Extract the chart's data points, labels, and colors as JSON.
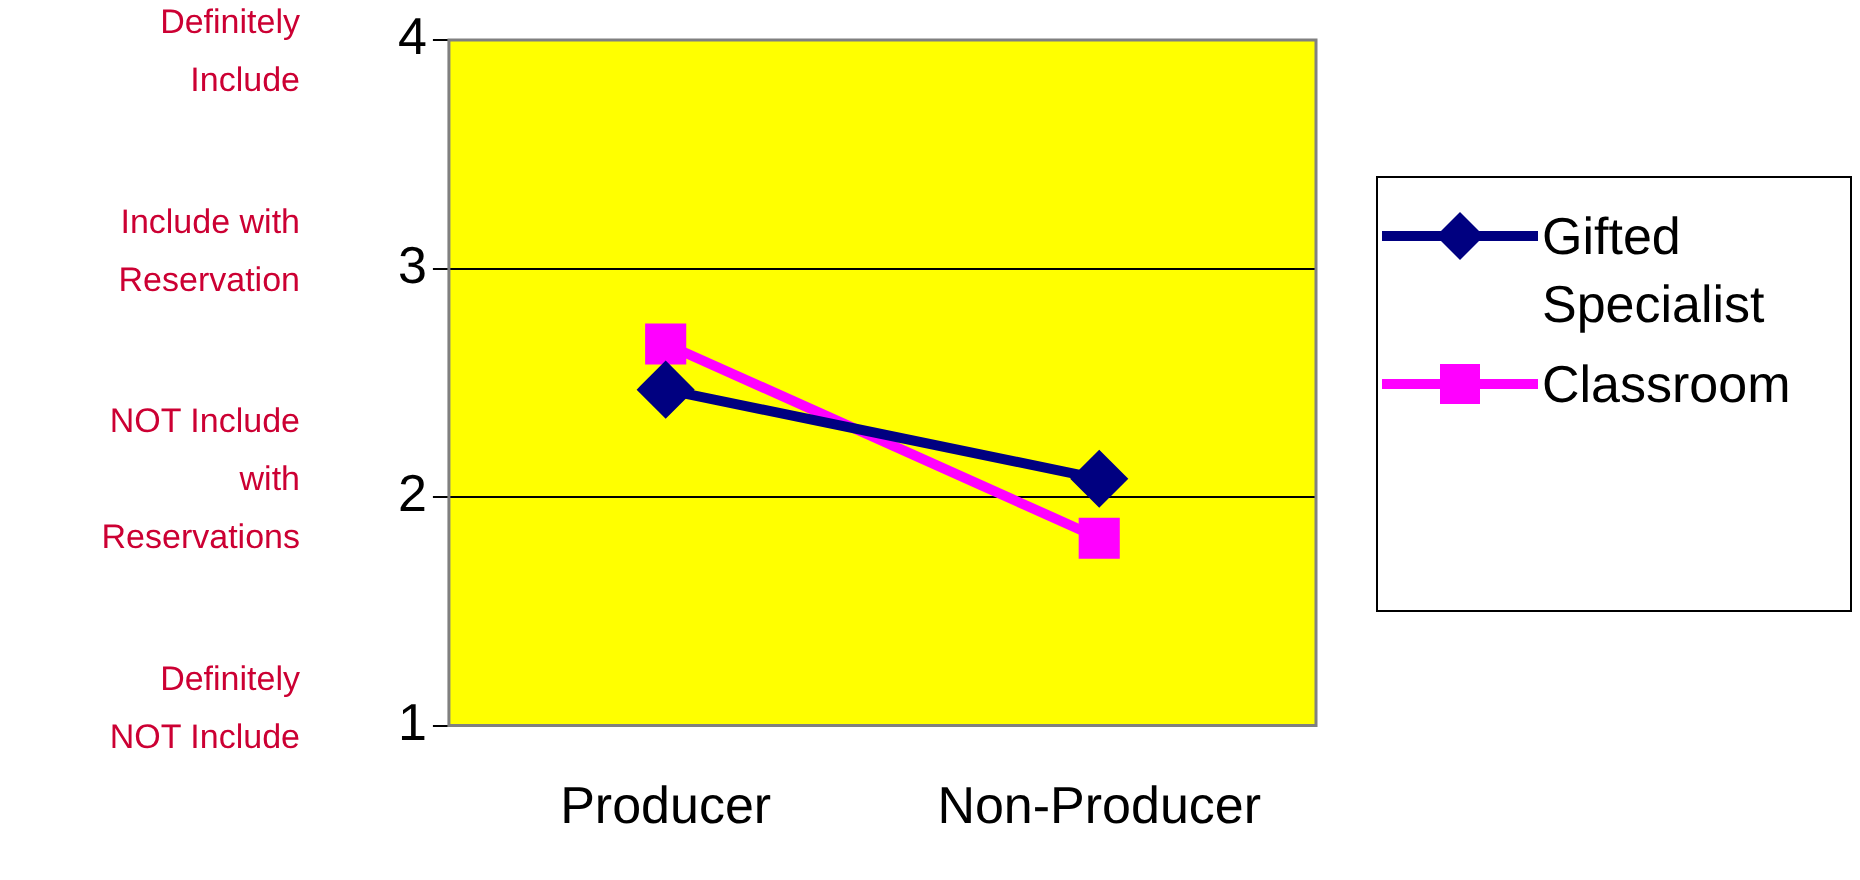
{
  "chart_data": {
    "type": "line",
    "categories": [
      "Producer",
      "Non-Producer"
    ],
    "series": [
      {
        "name": "Gifted Specialist",
        "color": "#000080",
        "values": [
          2.47,
          2.08
        ],
        "marker": "diamond"
      },
      {
        "name": "Classroom",
        "color": "#ff00ff",
        "values": [
          2.67,
          1.82
        ],
        "marker": "square"
      }
    ],
    "ylim": [
      1,
      4
    ],
    "yticks": [
      1,
      2,
      3,
      4
    ],
    "grid": "y",
    "legend": "right",
    "line_style": "solid",
    "annotations": [
      "Definitely Include",
      "Include with Reservation",
      "NOT Include with Reservations",
      "Definitely NOT Include"
    ]
  }
}
